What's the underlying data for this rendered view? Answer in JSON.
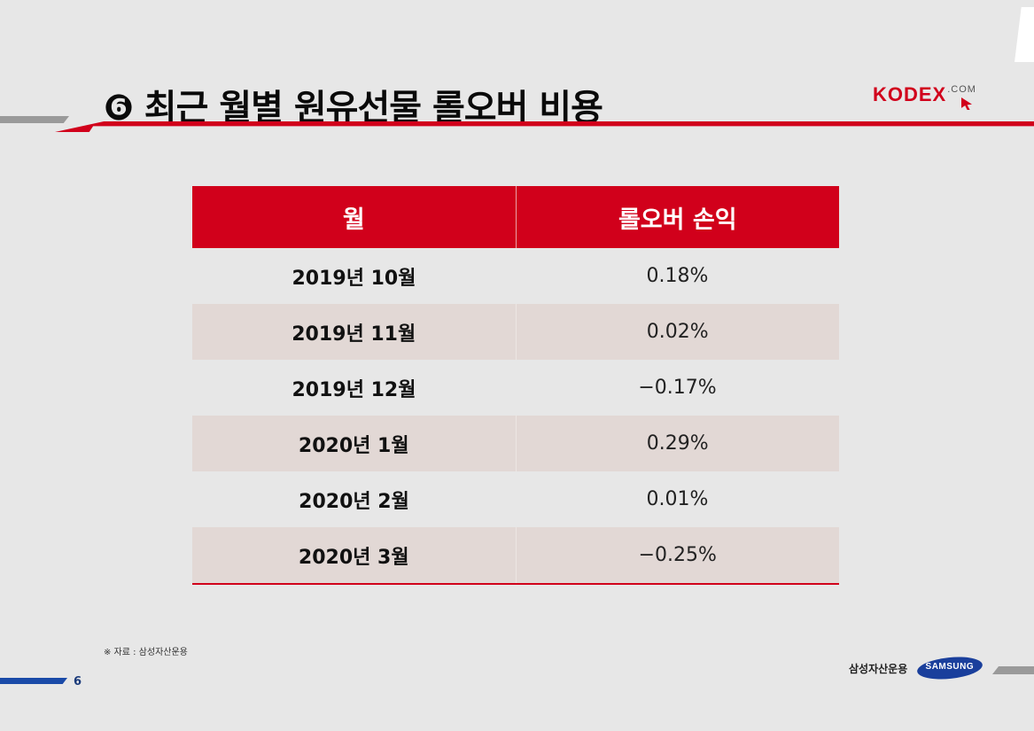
{
  "title": "❻ 최근 월별 원유선물 롤오버 비용",
  "logo": {
    "brand": "KODEX",
    "suffix": ".COM"
  },
  "table": {
    "headers": [
      "월",
      "롤오버 손익"
    ],
    "rows": [
      {
        "month": "2019년 10월",
        "value": "0.18%"
      },
      {
        "month": "2019년 11월",
        "value": "0.02%"
      },
      {
        "month": "2019년 12월",
        "value": "−0.17%"
      },
      {
        "month": "2020년 1월",
        "value": "0.29%"
      },
      {
        "month": "2020년 2월",
        "value": "0.01%"
      },
      {
        "month": "2020년 3월",
        "value": "−0.25%"
      }
    ]
  },
  "footer": {
    "source": "※ 자료 : 삼성자산운용",
    "page_number": "6",
    "company": "삼성자산운용",
    "samsung_logo_text": "SAMSUNG"
  },
  "colors": {
    "accent_red": "#d1001b",
    "row_shade": "#e2d8d5",
    "footer_blue": "#1a4aa8"
  }
}
